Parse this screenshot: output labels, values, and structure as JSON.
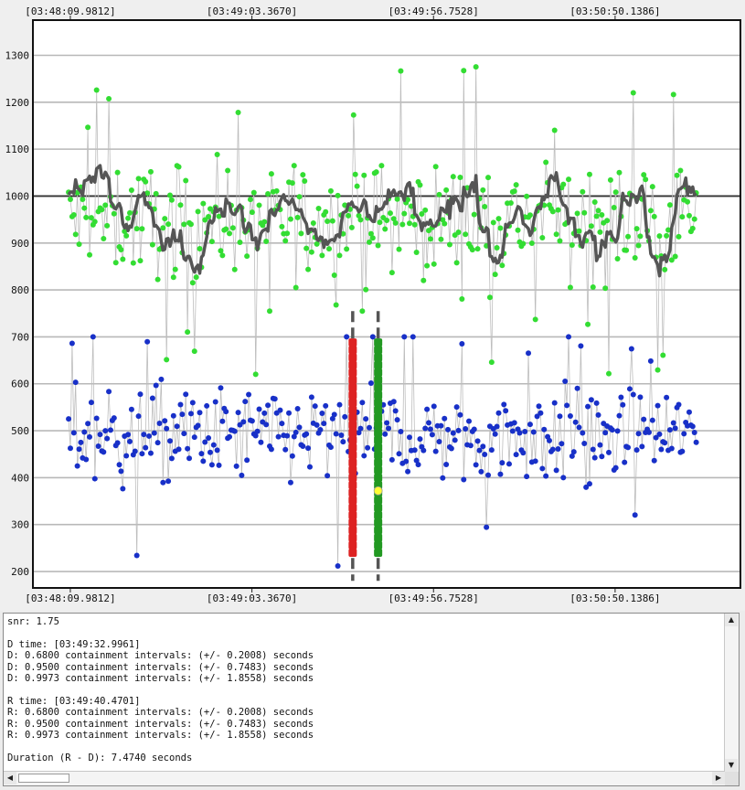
{
  "chart_data": {
    "type": "scatter",
    "title": "",
    "xlabel": "",
    "ylabel": "",
    "x_tick_labels": [
      "[03:48:09.9812]",
      "[03:49:03.3670]",
      "[03:49:56.7528]",
      "[03:50:50.1386]"
    ],
    "x_ticks_seconds_from_start": [
      0,
      53.3858,
      106.7716,
      160.1574
    ],
    "xlim_seconds_from_start": [
      -11,
      197
    ],
    "ylim": [
      165,
      1375
    ],
    "y_ticks": [
      200,
      300,
      400,
      500,
      600,
      700,
      800,
      900,
      1000,
      1100,
      1200,
      1300
    ],
    "reference_line_y": 1000,
    "grid": true,
    "series": [
      {
        "color": "#33dd33",
        "mean": 950,
        "spread": 110,
        "spike_max": 1330,
        "spike_min": 620,
        "markers": "circle"
      },
      {
        "color": "#1830c8",
        "mean": 490,
        "spread": 95,
        "spike_max": 700,
        "spike_min": 180,
        "markers": "circle"
      },
      {
        "color": "#555555",
        "mean_range": [
          830,
          1065
        ],
        "markers": "none",
        "line": "smoothed"
      }
    ],
    "markers_d": {
      "time_seconds_from_start": 83.0149,
      "y_range": [
        180,
        755
      ],
      "color": "#dd2222"
    },
    "markers_r": {
      "time_seconds_from_start": 90.4889,
      "y_range": [
        180,
        755
      ],
      "color": "#229922"
    },
    "highlight_point": {
      "time_seconds_from_start": 90.4889,
      "y": 372,
      "color": "#ffff33"
    }
  },
  "log": {
    "lines": [
      "snr: 1.75",
      "",
      "D time: [03:49:32.9961]",
      "D: 0.6800 containment intervals: (+/- 0.2008) seconds",
      "D: 0.9500 containment intervals: (+/- 0.7483) seconds",
      "D: 0.9973 containment intervals: (+/- 1.8558) seconds",
      "",
      "R time: [03:49:40.4701]",
      "R: 0.6800 containment intervals: (+/- 0.2008) seconds",
      "R: 0.9500 containment intervals: (+/- 0.7483) seconds",
      "R: 0.9973 containment intervals: (+/- 1.8558) seconds",
      "",
      "Duration (R - D): 7.4740 seconds"
    ],
    "scroll_up_icon": "triangle-up",
    "scroll_down_icon": "triangle-down",
    "scroll_left_icon": "triangle-left",
    "scroll_right_icon": "triangle-right"
  }
}
